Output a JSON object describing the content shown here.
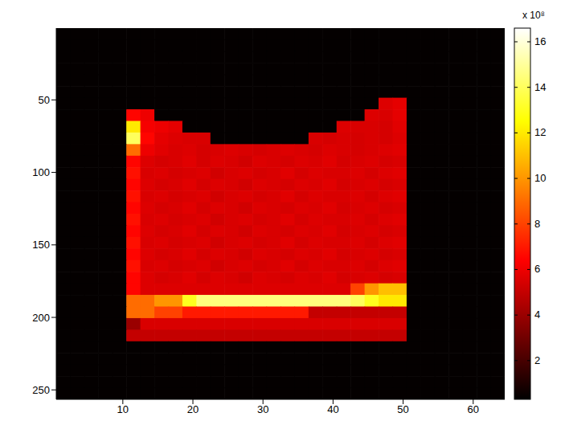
{
  "chart_data": {
    "type": "heatmap",
    "x": [
      1.5,
      3.5,
      5.5,
      7.5,
      9.5,
      11.5,
      13.5,
      15.5,
      17.5,
      19.5,
      21.5,
      23.5,
      25.5,
      27.5,
      29.5,
      31.5,
      33.5,
      35.5,
      37.5,
      39.5,
      41.5,
      43.5,
      45.5,
      47.5,
      49.5,
      51.5,
      53.5,
      55.5,
      57.5,
      59.5,
      61.5,
      63.5
    ],
    "y": [
      4.5,
      12.5,
      20.5,
      28.5,
      36.5,
      44.5,
      52.5,
      60.5,
      68.5,
      76.5,
      84.5,
      92.5,
      100.5,
      108.5,
      116.5,
      124.5,
      132.5,
      140.5,
      148.5,
      156.5,
      164.5,
      172.5,
      180.5,
      188.5,
      196.5,
      204.5,
      212.5,
      220.5,
      228.5,
      236.5,
      244.5,
      252.5
    ],
    "z": [
      [
        0.4,
        0.4,
        0.4,
        0.4,
        0.4,
        0.4,
        0.4,
        0.4,
        0.4,
        0.4,
        0.4,
        0.4,
        0.4,
        0.4,
        0.4,
        0.4,
        0.4,
        0.4,
        0.4,
        0.4,
        0.4,
        0.4,
        0.4,
        0.4,
        0.4,
        0.4,
        0.4,
        0.4,
        0.4,
        0.4,
        0.4,
        0.4
      ],
      [
        0.4,
        0.4,
        0.4,
        0.4,
        0.4,
        0.4,
        0.4,
        0.4,
        0.4,
        0.4,
        0.4,
        0.4,
        0.4,
        0.4,
        0.4,
        0.4,
        0.4,
        0.4,
        0.4,
        0.4,
        0.4,
        0.4,
        0.4,
        0.4,
        0.4,
        0.4,
        0.4,
        0.4,
        0.4,
        0.4,
        0.4,
        0.4
      ],
      [
        0.4,
        0.4,
        0.4,
        0.4,
        0.4,
        0.4,
        0.4,
        0.4,
        0.4,
        0.4,
        0.4,
        0.4,
        0.4,
        0.4,
        0.4,
        0.4,
        0.4,
        0.4,
        0.4,
        0.4,
        0.4,
        0.4,
        0.4,
        0.4,
        0.4,
        0.4,
        0.4,
        0.4,
        0.4,
        0.4,
        0.4,
        0.4
      ],
      [
        0.4,
        0.4,
        0.4,
        0.4,
        0.4,
        0.4,
        0.4,
        0.4,
        0.4,
        0.4,
        0.4,
        0.4,
        0.4,
        0.4,
        0.4,
        0.4,
        0.4,
        0.4,
        0.4,
        0.4,
        0.4,
        0.4,
        0.4,
        0.4,
        0.4,
        0.4,
        0.4,
        0.4,
        0.4,
        0.4,
        0.4,
        0.4
      ],
      [
        0.4,
        0.4,
        0.4,
        0.4,
        0.4,
        0.4,
        0.4,
        0.4,
        0.4,
        0.4,
        0.4,
        0.4,
        0.4,
        0.4,
        0.4,
        0.4,
        0.4,
        0.4,
        0.4,
        0.4,
        0.4,
        0.4,
        0.4,
        0.4,
        0.4,
        0.4,
        0.4,
        0.4,
        0.4,
        0.4,
        0.4,
        0.4
      ],
      [
        0.4,
        0.4,
        0.4,
        0.4,
        0.4,
        0.4,
        0.4,
        0.4,
        0.4,
        0.4,
        0.4,
        0.4,
        0.4,
        0.4,
        0.4,
        0.4,
        0.4,
        0.4,
        0.4,
        0.4,
        0.4,
        0.4,
        0.4,
        0.4,
        0.4,
        0.4,
        0.4,
        0.4,
        0.4,
        0.4,
        0.4,
        0.4
      ],
      [
        0.4,
        0.4,
        0.4,
        0.4,
        0.4,
        0.4,
        0.4,
        0.4,
        0.4,
        0.4,
        0.4,
        0.4,
        0.4,
        0.4,
        0.4,
        0.4,
        0.4,
        0.4,
        0.4,
        0.4,
        0.4,
        0.4,
        0.4,
        5.6,
        5.8,
        0.4,
        0.4,
        0.4,
        0.4,
        0.4,
        0.4,
        0.4
      ],
      [
        0.4,
        0.4,
        0.4,
        0.4,
        0.4,
        6.5,
        6.0,
        0.4,
        0.4,
        0.4,
        0.4,
        0.4,
        0.4,
        0.4,
        0.4,
        0.4,
        0.4,
        0.4,
        0.4,
        0.4,
        0.4,
        0.4,
        5.6,
        5.5,
        5.8,
        0.4,
        0.4,
        0.4,
        0.4,
        0.4,
        0.4,
        0.4
      ],
      [
        0.4,
        0.4,
        0.4,
        0.4,
        0.4,
        12,
        6.2,
        6.0,
        5.8,
        0.4,
        0.4,
        0.4,
        0.4,
        0.4,
        0.4,
        0.4,
        0.4,
        0.4,
        0.4,
        0.4,
        5.6,
        5.5,
        5.5,
        5.4,
        5.7,
        0.4,
        0.4,
        0.4,
        0.4,
        0.4,
        0.4,
        0.4
      ],
      [
        0.4,
        0.4,
        0.4,
        0.4,
        0.4,
        14,
        6.5,
        5.8,
        5.6,
        5.5,
        5.5,
        0.4,
        0.4,
        0.4,
        0.4,
        0.4,
        0.4,
        0.4,
        5.5,
        5.4,
        5.5,
        5.4,
        5.5,
        5.4,
        5.6,
        0.4,
        0.4,
        0.4,
        0.4,
        0.4,
        0.4,
        0.4
      ],
      [
        0.4,
        0.4,
        0.4,
        0.4,
        0.4,
        9,
        6.0,
        5.7,
        5.5,
        5.6,
        5.4,
        5.5,
        5.6,
        5.5,
        5.4,
        5.5,
        5.6,
        5.5,
        5.4,
        5.6,
        5.5,
        5.4,
        5.5,
        5.6,
        5.7,
        0.4,
        0.4,
        0.4,
        0.4,
        0.4,
        0.4,
        0.4
      ],
      [
        0.4,
        0.4,
        0.4,
        0.4,
        0.4,
        6.5,
        5.6,
        5.4,
        5.5,
        5.7,
        5.4,
        5.6,
        5.5,
        5.3,
        5.6,
        5.5,
        5.4,
        5.6,
        5.5,
        5.7,
        5.4,
        5.5,
        5.6,
        5.4,
        5.5,
        0.4,
        0.4,
        0.4,
        0.4,
        0.4,
        0.4,
        0.4
      ],
      [
        0.4,
        0.4,
        0.4,
        0.4,
        0.4,
        6.8,
        5.5,
        5.6,
        5.4,
        5.5,
        5.6,
        5.3,
        5.5,
        5.6,
        5.4,
        5.5,
        5.7,
        5.4,
        5.6,
        5.5,
        5.5,
        5.6,
        5.4,
        5.6,
        5.7,
        0.4,
        0.4,
        0.4,
        0.4,
        0.4,
        0.4,
        0.4
      ],
      [
        0.4,
        0.4,
        0.4,
        0.4,
        0.4,
        6.5,
        5.6,
        5.4,
        5.5,
        5.7,
        5.4,
        5.6,
        5.5,
        5.3,
        5.6,
        5.5,
        5.4,
        5.6,
        5.5,
        5.7,
        5.4,
        5.5,
        5.6,
        5.4,
        5.5,
        0.4,
        0.4,
        0.4,
        0.4,
        0.4,
        0.4,
        0.4
      ],
      [
        0.4,
        0.4,
        0.4,
        0.4,
        0.4,
        6.8,
        5.5,
        5.6,
        5.4,
        5.5,
        5.6,
        5.3,
        5.5,
        5.6,
        5.4,
        5.5,
        5.7,
        5.4,
        5.6,
        5.5,
        5.5,
        5.6,
        5.4,
        5.6,
        5.7,
        0.4,
        0.4,
        0.4,
        0.4,
        0.4,
        0.4,
        0.4
      ],
      [
        0.4,
        0.4,
        0.4,
        0.4,
        0.4,
        6.5,
        5.6,
        5.4,
        5.5,
        5.7,
        5.4,
        5.6,
        5.5,
        5.3,
        5.6,
        5.5,
        5.4,
        5.6,
        5.5,
        5.7,
        5.4,
        5.5,
        5.6,
        5.4,
        5.5,
        0.4,
        0.4,
        0.4,
        0.4,
        0.4,
        0.4,
        0.4
      ],
      [
        0.4,
        0.4,
        0.4,
        0.4,
        0.4,
        6.8,
        5.5,
        5.6,
        5.4,
        5.5,
        5.6,
        5.3,
        5.5,
        5.6,
        5.4,
        5.5,
        5.7,
        5.4,
        5.6,
        5.5,
        5.5,
        5.6,
        5.4,
        5.6,
        5.7,
        0.4,
        0.4,
        0.4,
        0.4,
        0.4,
        0.4,
        0.4
      ],
      [
        0.4,
        0.4,
        0.4,
        0.4,
        0.4,
        6.5,
        5.6,
        5.4,
        5.5,
        5.7,
        5.4,
        5.6,
        5.5,
        5.3,
        5.6,
        5.5,
        5.4,
        5.6,
        5.5,
        5.7,
        5.4,
        5.5,
        5.6,
        5.4,
        5.5,
        0.4,
        0.4,
        0.4,
        0.4,
        0.4,
        0.4,
        0.4
      ],
      [
        0.4,
        0.4,
        0.4,
        0.4,
        0.4,
        6.8,
        5.5,
        5.6,
        5.4,
        5.5,
        5.6,
        5.3,
        5.5,
        5.6,
        5.4,
        5.5,
        5.7,
        5.4,
        5.6,
        5.5,
        5.5,
        5.6,
        5.4,
        5.6,
        5.7,
        0.4,
        0.4,
        0.4,
        0.4,
        0.4,
        0.4,
        0.4
      ],
      [
        0.4,
        0.4,
        0.4,
        0.4,
        0.4,
        6.5,
        5.6,
        5.4,
        5.5,
        5.7,
        5.4,
        5.6,
        5.5,
        5.3,
        5.6,
        5.5,
        5.4,
        5.6,
        5.5,
        5.7,
        5.4,
        5.5,
        5.6,
        5.4,
        5.5,
        0.4,
        0.4,
        0.4,
        0.4,
        0.4,
        0.4,
        0.4
      ],
      [
        0.4,
        0.4,
        0.4,
        0.4,
        0.4,
        6.8,
        5.5,
        5.6,
        5.4,
        5.5,
        5.6,
        5.3,
        5.5,
        5.6,
        5.4,
        5.5,
        5.7,
        5.4,
        5.6,
        5.5,
        5.5,
        5.6,
        5.4,
        5.6,
        5.7,
        0.4,
        0.4,
        0.4,
        0.4,
        0.4,
        0.4,
        0.4
      ],
      [
        0.4,
        0.4,
        0.4,
        0.4,
        0.4,
        6.5,
        5.6,
        5.4,
        5.5,
        5.7,
        5.4,
        5.6,
        5.5,
        5.3,
        5.6,
        5.5,
        5.4,
        5.6,
        5.5,
        5.7,
        5.4,
        5.5,
        5.6,
        5.4,
        5.5,
        0.4,
        0.4,
        0.4,
        0.4,
        0.4,
        0.4,
        0.4
      ],
      [
        0.4,
        0.4,
        0.4,
        0.4,
        0.4,
        6.5,
        5.6,
        5.6,
        5.6,
        5.6,
        5.6,
        5.6,
        5.6,
        5.6,
        5.6,
        5.6,
        5.6,
        5.6,
        5.6,
        5.6,
        5.6,
        8,
        10,
        11,
        11,
        0.4,
        0.4,
        0.4,
        0.4,
        0.4,
        0.4,
        0.4
      ],
      [
        0.4,
        0.4,
        0.4,
        0.4,
        0.4,
        9,
        9,
        10,
        10,
        13,
        14.5,
        14.5,
        14.5,
        14.5,
        14.5,
        14.5,
        14.5,
        14.5,
        14.5,
        14.5,
        14.5,
        14,
        13,
        12,
        12,
        0.4,
        0.4,
        0.4,
        0.4,
        0.4,
        0.4,
        0.4
      ],
      [
        0.4,
        0.4,
        0.4,
        0.4,
        0.4,
        9,
        9,
        8,
        8,
        7,
        7,
        7,
        7,
        7,
        7,
        7,
        7,
        7,
        5,
        5,
        5,
        5,
        5,
        5,
        5,
        0.4,
        0.4,
        0.4,
        0.4,
        0.4,
        0.4,
        0.4
      ],
      [
        0.4,
        0.4,
        0.4,
        0.4,
        0.4,
        4,
        5.5,
        5.5,
        5.5,
        5.5,
        5.5,
        5.5,
        5.5,
        5.5,
        5.5,
        5.5,
        5.5,
        5.5,
        5.5,
        5.5,
        5.5,
        5.5,
        5.5,
        5.5,
        5.5,
        0.4,
        0.4,
        0.4,
        0.4,
        0.4,
        0.4,
        0.4
      ],
      [
        0.4,
        0.4,
        0.4,
        0.4,
        0.4,
        5,
        5,
        5,
        5,
        5,
        5,
        5,
        5,
        5,
        5,
        5,
        5,
        5,
        5,
        5,
        5,
        5,
        5,
        5,
        5,
        0.4,
        0.4,
        0.4,
        0.4,
        0.4,
        0.4,
        0.4
      ],
      [
        0.4,
        0.4,
        0.4,
        0.4,
        0.4,
        0.4,
        0.4,
        0.4,
        0.4,
        0.4,
        0.4,
        0.4,
        0.4,
        0.4,
        0.4,
        0.4,
        0.4,
        0.4,
        0.4,
        0.4,
        0.4,
        0.4,
        0.4,
        0.4,
        0.4,
        0.4,
        0.4,
        0.4,
        0.4,
        0.4,
        0.4,
        0.4
      ],
      [
        0.4,
        0.4,
        0.4,
        0.4,
        0.4,
        0.4,
        0.4,
        0.4,
        0.4,
        0.4,
        0.4,
        0.4,
        0.4,
        0.4,
        0.4,
        0.4,
        0.4,
        0.4,
        0.4,
        0.4,
        0.4,
        0.4,
        0.4,
        0.4,
        0.4,
        0.4,
        0.4,
        0.4,
        0.4,
        0.4,
        0.4,
        0.4
      ],
      [
        0.4,
        0.4,
        0.4,
        0.4,
        0.4,
        0.4,
        0.4,
        0.4,
        0.4,
        0.4,
        0.4,
        0.4,
        0.4,
        0.4,
        0.4,
        0.4,
        0.4,
        0.4,
        0.4,
        0.4,
        0.4,
        0.4,
        0.4,
        0.4,
        0.4,
        0.4,
        0.4,
        0.4,
        0.4,
        0.4,
        0.4,
        0.4
      ],
      [
        0.4,
        0.4,
        0.4,
        0.4,
        0.4,
        0.4,
        0.4,
        0.4,
        0.4,
        0.4,
        0.4,
        0.4,
        0.4,
        0.4,
        0.4,
        0.4,
        0.4,
        0.4,
        0.4,
        0.4,
        0.4,
        0.4,
        0.4,
        0.4,
        0.4,
        0.4,
        0.4,
        0.4,
        0.4,
        0.4,
        0.4,
        0.4
      ],
      [
        0.4,
        0.4,
        0.4,
        0.4,
        0.4,
        0.4,
        0.4,
        0.4,
        0.4,
        0.4,
        0.4,
        0.4,
        0.4,
        0.4,
        0.4,
        0.4,
        0.4,
        0.4,
        0.4,
        0.4,
        0.4,
        0.4,
        0.4,
        0.4,
        0.4,
        0.4,
        0.4,
        0.4,
        0.4,
        0.4,
        0.4,
        0.4
      ]
    ],
    "xlim": [
      0.5,
      64.5
    ],
    "xticks": [
      10,
      20,
      30,
      40,
      50,
      60
    ],
    "ylim": [
      256.5,
      0.5
    ],
    "yticks": [
      50,
      100,
      150,
      200,
      250
    ],
    "colorbar": {
      "range": [
        0.3,
        16.6
      ],
      "ticks": [
        2,
        4,
        6,
        8,
        10,
        12,
        14,
        16
      ],
      "label": "x 10⁸"
    }
  }
}
